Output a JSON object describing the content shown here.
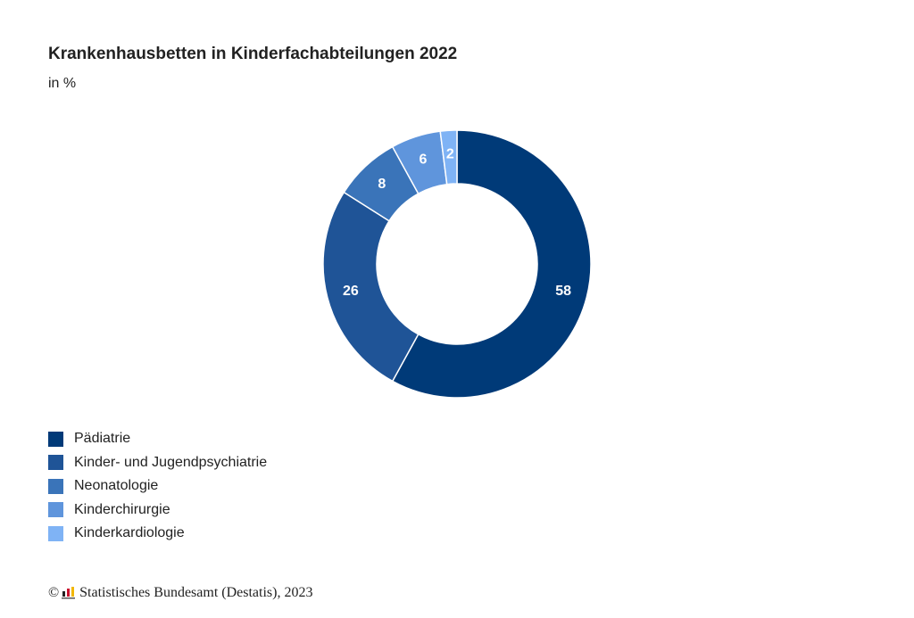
{
  "chart_data": {
    "type": "pie",
    "title": "Krankenhausbetten in Kinderfachabteilungen 2022",
    "subtitle": "in %",
    "donut": true,
    "legend_position": "bottom-left",
    "categories": [
      "Pädiatrie",
      "Kinder- und Jugendpsychiatrie",
      "Neonatologie",
      "Kinderchirurgie",
      "Kinderkardiologie"
    ],
    "values": [
      58,
      26,
      8,
      6,
      2
    ],
    "value_labels": [
      "58",
      "26",
      "8",
      "6",
      "2"
    ],
    "colors": [
      "#003a78",
      "#1f5497",
      "#3a74b9",
      "#5f95dc",
      "#7fb3f5"
    ]
  },
  "footer": {
    "copyright_symbol": "©",
    "source": "Statistisches Bundesamt (Destatis), 2023"
  }
}
